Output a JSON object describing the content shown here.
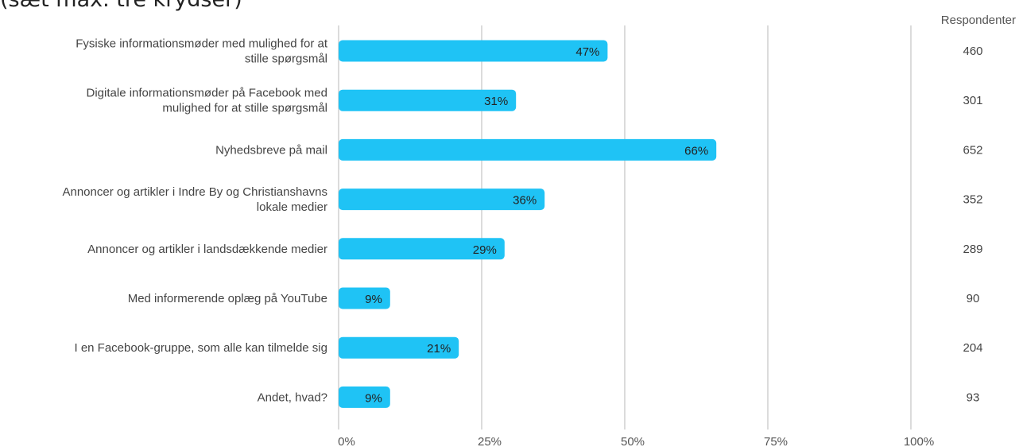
{
  "header_text": "(sæt max. tre krydser)",
  "respondents_header": "Respondenter",
  "colors": {
    "bar": "#1fc3f5",
    "grid": "#c8c8c8",
    "label": "#444444",
    "value": "#222222"
  },
  "chart_data": {
    "type": "bar",
    "orientation": "horizontal",
    "categories": [
      [
        "Fysiske informationsmøder med mulighed for at",
        "stille spørgsmål"
      ],
      [
        "Digitale informationsmøder på Facebook med",
        "mulighed for at stille spørgsmål"
      ],
      [
        "Nyhedsbreve på mail"
      ],
      [
        "Annoncer og artikler i Indre By og Christianshavns",
        "lokale medier"
      ],
      [
        "Annoncer og artikler i landsdækkende medier"
      ],
      [
        "Med informerende oplæg på YouTube"
      ],
      [
        "I en Facebook-gruppe, som alle kan tilmelde sig"
      ],
      [
        "Andet, hvad?"
      ]
    ],
    "values": [
      47,
      31,
      66,
      36,
      29,
      9,
      21,
      9
    ],
    "value_labels": [
      "47%",
      "31%",
      "66%",
      "36%",
      "29%",
      "9%",
      "21%",
      "9%"
    ],
    "respondents": [
      "460",
      "301",
      "652",
      "352",
      "289",
      "90",
      "204",
      "93"
    ],
    "xlim": [
      0,
      100
    ],
    "xticks": [
      0,
      25,
      50,
      75,
      100
    ],
    "xtick_labels": [
      "0%",
      "25%",
      "50%",
      "75%",
      "100%"
    ],
    "grid": true
  }
}
